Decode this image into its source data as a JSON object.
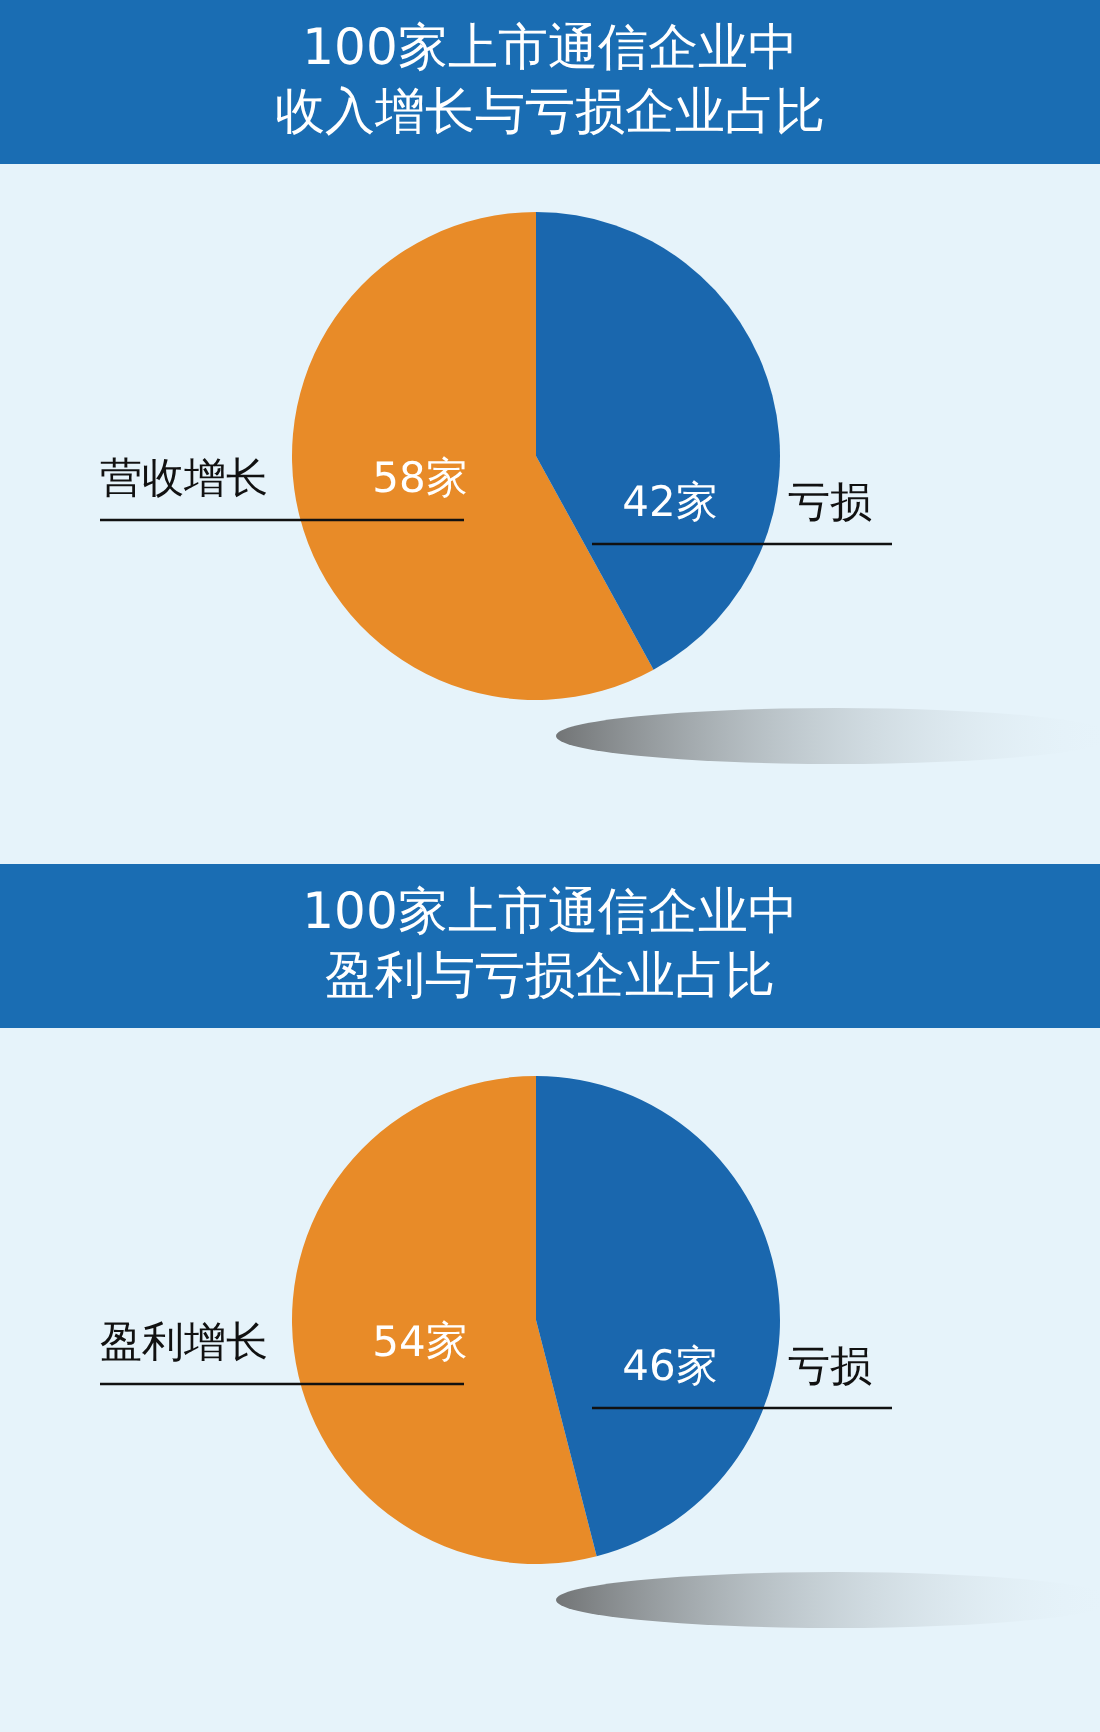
{
  "chart_data": [
    {
      "type": "pie",
      "title": "100家上市通信企业中",
      "subtitle": "收入增长与亏损企业占比",
      "categories": [
        "营收增长",
        "亏损"
      ],
      "values": [
        58,
        42
      ],
      "colors": [
        "#e88b28",
        "#1a67ae"
      ],
      "value_labels": [
        "58家",
        "42家"
      ]
    },
    {
      "type": "pie",
      "title": "100家上市通信企业中",
      "subtitle": "盈利与亏损企业占比",
      "categories": [
        "盈利增长",
        "亏损"
      ],
      "values": [
        54,
        46
      ],
      "colors": [
        "#e88b28",
        "#1a67ae"
      ],
      "value_labels": [
        "54家",
        "46家"
      ]
    }
  ]
}
